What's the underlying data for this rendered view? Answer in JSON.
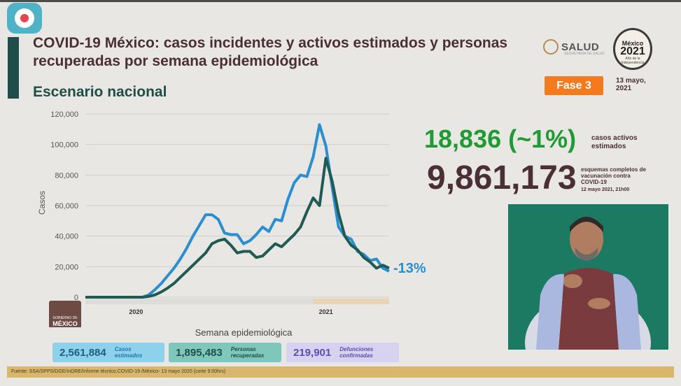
{
  "title": "COVID-19 México: casos incidentes y activos estimados y personas recuperadas por semana epidemiológica",
  "subtitle": "Escenario nacional",
  "logo_salud": {
    "name": "SALUD",
    "small": "SECRETARÍA DE SALUD"
  },
  "badge": {
    "line1": "México",
    "line2": "2021",
    "line3": "Año de la Independencia"
  },
  "phase": "Fase 3",
  "date": "13 mayo, 2021",
  "active_cases": {
    "value": "18,836 (~1%)",
    "label": "casos activos estimados"
  },
  "vaccination": {
    "value": "9,861,173",
    "label": "esquemas completos de vacunación contra COVID-19",
    "date": "12 mayo 2021, 21h00"
  },
  "summary": [
    {
      "value": "2,561,884",
      "label": "Casos estimados"
    },
    {
      "value": "1,895,483",
      "label": "Personas recuperadas"
    },
    {
      "value": "219,901",
      "label": "Defunciones confirmadas"
    }
  ],
  "watermark": {
    "line1": "GOBIERNO DE",
    "line2": "MÉXICO"
  },
  "footer": "Fuente: SSA/SPPS/DGE/InDRE/Informe técnico.COVID-19 /México- 13 mayo 2020 (corte 9:00hrs)",
  "colors": {
    "incident": "#2a8fd0",
    "active": "#1f5b52",
    "green": "#1f9a34",
    "maroon": "#4a2f36",
    "orange": "#f47a20"
  },
  "chart_data": {
    "type": "line",
    "title": "",
    "xlabel": "Semana epidemiológica",
    "ylabel": "Casos",
    "ylim": [
      0,
      120000
    ],
    "yticks": [
      0,
      20000,
      40000,
      60000,
      80000,
      100000,
      120000
    ],
    "ytick_labels": [
      "0",
      "20,000",
      "40,000",
      "60,000",
      "80,000",
      "100,000",
      "120,000"
    ],
    "year_labels": [
      {
        "label": "2020",
        "week": 20
      },
      {
        "label": "2021",
        "week": 50
      }
    ],
    "change_label": "-13%",
    "grid": true,
    "series": [
      {
        "values": [
          0,
          0,
          0,
          0,
          0,
          0,
          0,
          0,
          0,
          0,
          1500,
          5000,
          9000,
          14000,
          19000,
          25000,
          32000,
          40000,
          47000,
          54000,
          54000,
          51000,
          42000,
          41000,
          41000,
          35000,
          37000,
          41000,
          46000,
          43000,
          51000,
          50000,
          64000,
          75000,
          80000,
          79000,
          92000,
          113000,
          99000,
          72000,
          46000,
          40000,
          38000,
          30000,
          28000,
          24000,
          25000,
          19000,
          17000
        ]
      },
      {
        "values": [
          0,
          0,
          0,
          0,
          0,
          0,
          0,
          0,
          0,
          0,
          500,
          1500,
          3500,
          6000,
          9000,
          13000,
          17000,
          21000,
          25000,
          29000,
          35000,
          37000,
          38000,
          34000,
          29000,
          30000,
          30000,
          26000,
          27000,
          31000,
          35000,
          33000,
          37000,
          41000,
          46000,
          56000,
          65000,
          60000,
          91000,
          76000,
          55000,
          40000,
          34000,
          31000,
          26000,
          23000,
          19000,
          21000,
          19000
        ]
      }
    ]
  }
}
